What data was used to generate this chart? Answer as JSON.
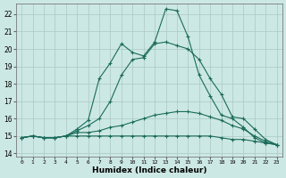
{
  "xlabel": "Humidex (Indice chaleur)",
  "x_values": [
    0,
    1,
    2,
    3,
    4,
    5,
    6,
    7,
    8,
    9,
    10,
    11,
    12,
    13,
    14,
    15,
    16,
    17,
    18,
    19,
    20,
    21,
    22,
    23
  ],
  "line1": [
    14.9,
    15.0,
    14.9,
    14.9,
    15.0,
    15.0,
    15.0,
    15.0,
    15.0,
    15.0,
    15.0,
    15.0,
    15.0,
    15.0,
    15.0,
    15.0,
    15.0,
    15.0,
    14.9,
    14.8,
    14.8,
    14.7,
    14.6,
    14.5
  ],
  "line2": [
    14.9,
    15.0,
    14.9,
    14.9,
    15.0,
    15.2,
    15.2,
    15.3,
    15.5,
    15.6,
    15.8,
    16.0,
    16.2,
    16.3,
    16.4,
    16.4,
    16.3,
    16.1,
    15.9,
    15.6,
    15.4,
    15.0,
    14.7,
    14.5
  ],
  "line3": [
    14.9,
    15.0,
    14.9,
    14.9,
    15.0,
    15.3,
    15.6,
    16.0,
    17.0,
    18.5,
    19.4,
    19.5,
    20.3,
    20.4,
    20.2,
    20.0,
    19.4,
    18.3,
    17.4,
    16.1,
    16.0,
    15.4,
    14.8,
    14.5
  ],
  "line4": [
    14.9,
    15.0,
    14.9,
    14.9,
    15.0,
    15.4,
    15.9,
    18.3,
    19.2,
    20.3,
    19.8,
    19.6,
    20.4,
    22.3,
    22.2,
    20.7,
    18.5,
    17.3,
    16.2,
    16.0,
    15.5,
    14.9,
    14.6,
    14.5
  ],
  "bg_color": "#cce8e4",
  "grid_color": "#aac8c4",
  "line_color": "#1a6b5a",
  "ylim": [
    13.8,
    22.6
  ],
  "yticks": [
    14,
    15,
    16,
    17,
    18,
    19,
    20,
    21,
    22
  ],
  "xlim": [
    -0.5,
    23.5
  ]
}
